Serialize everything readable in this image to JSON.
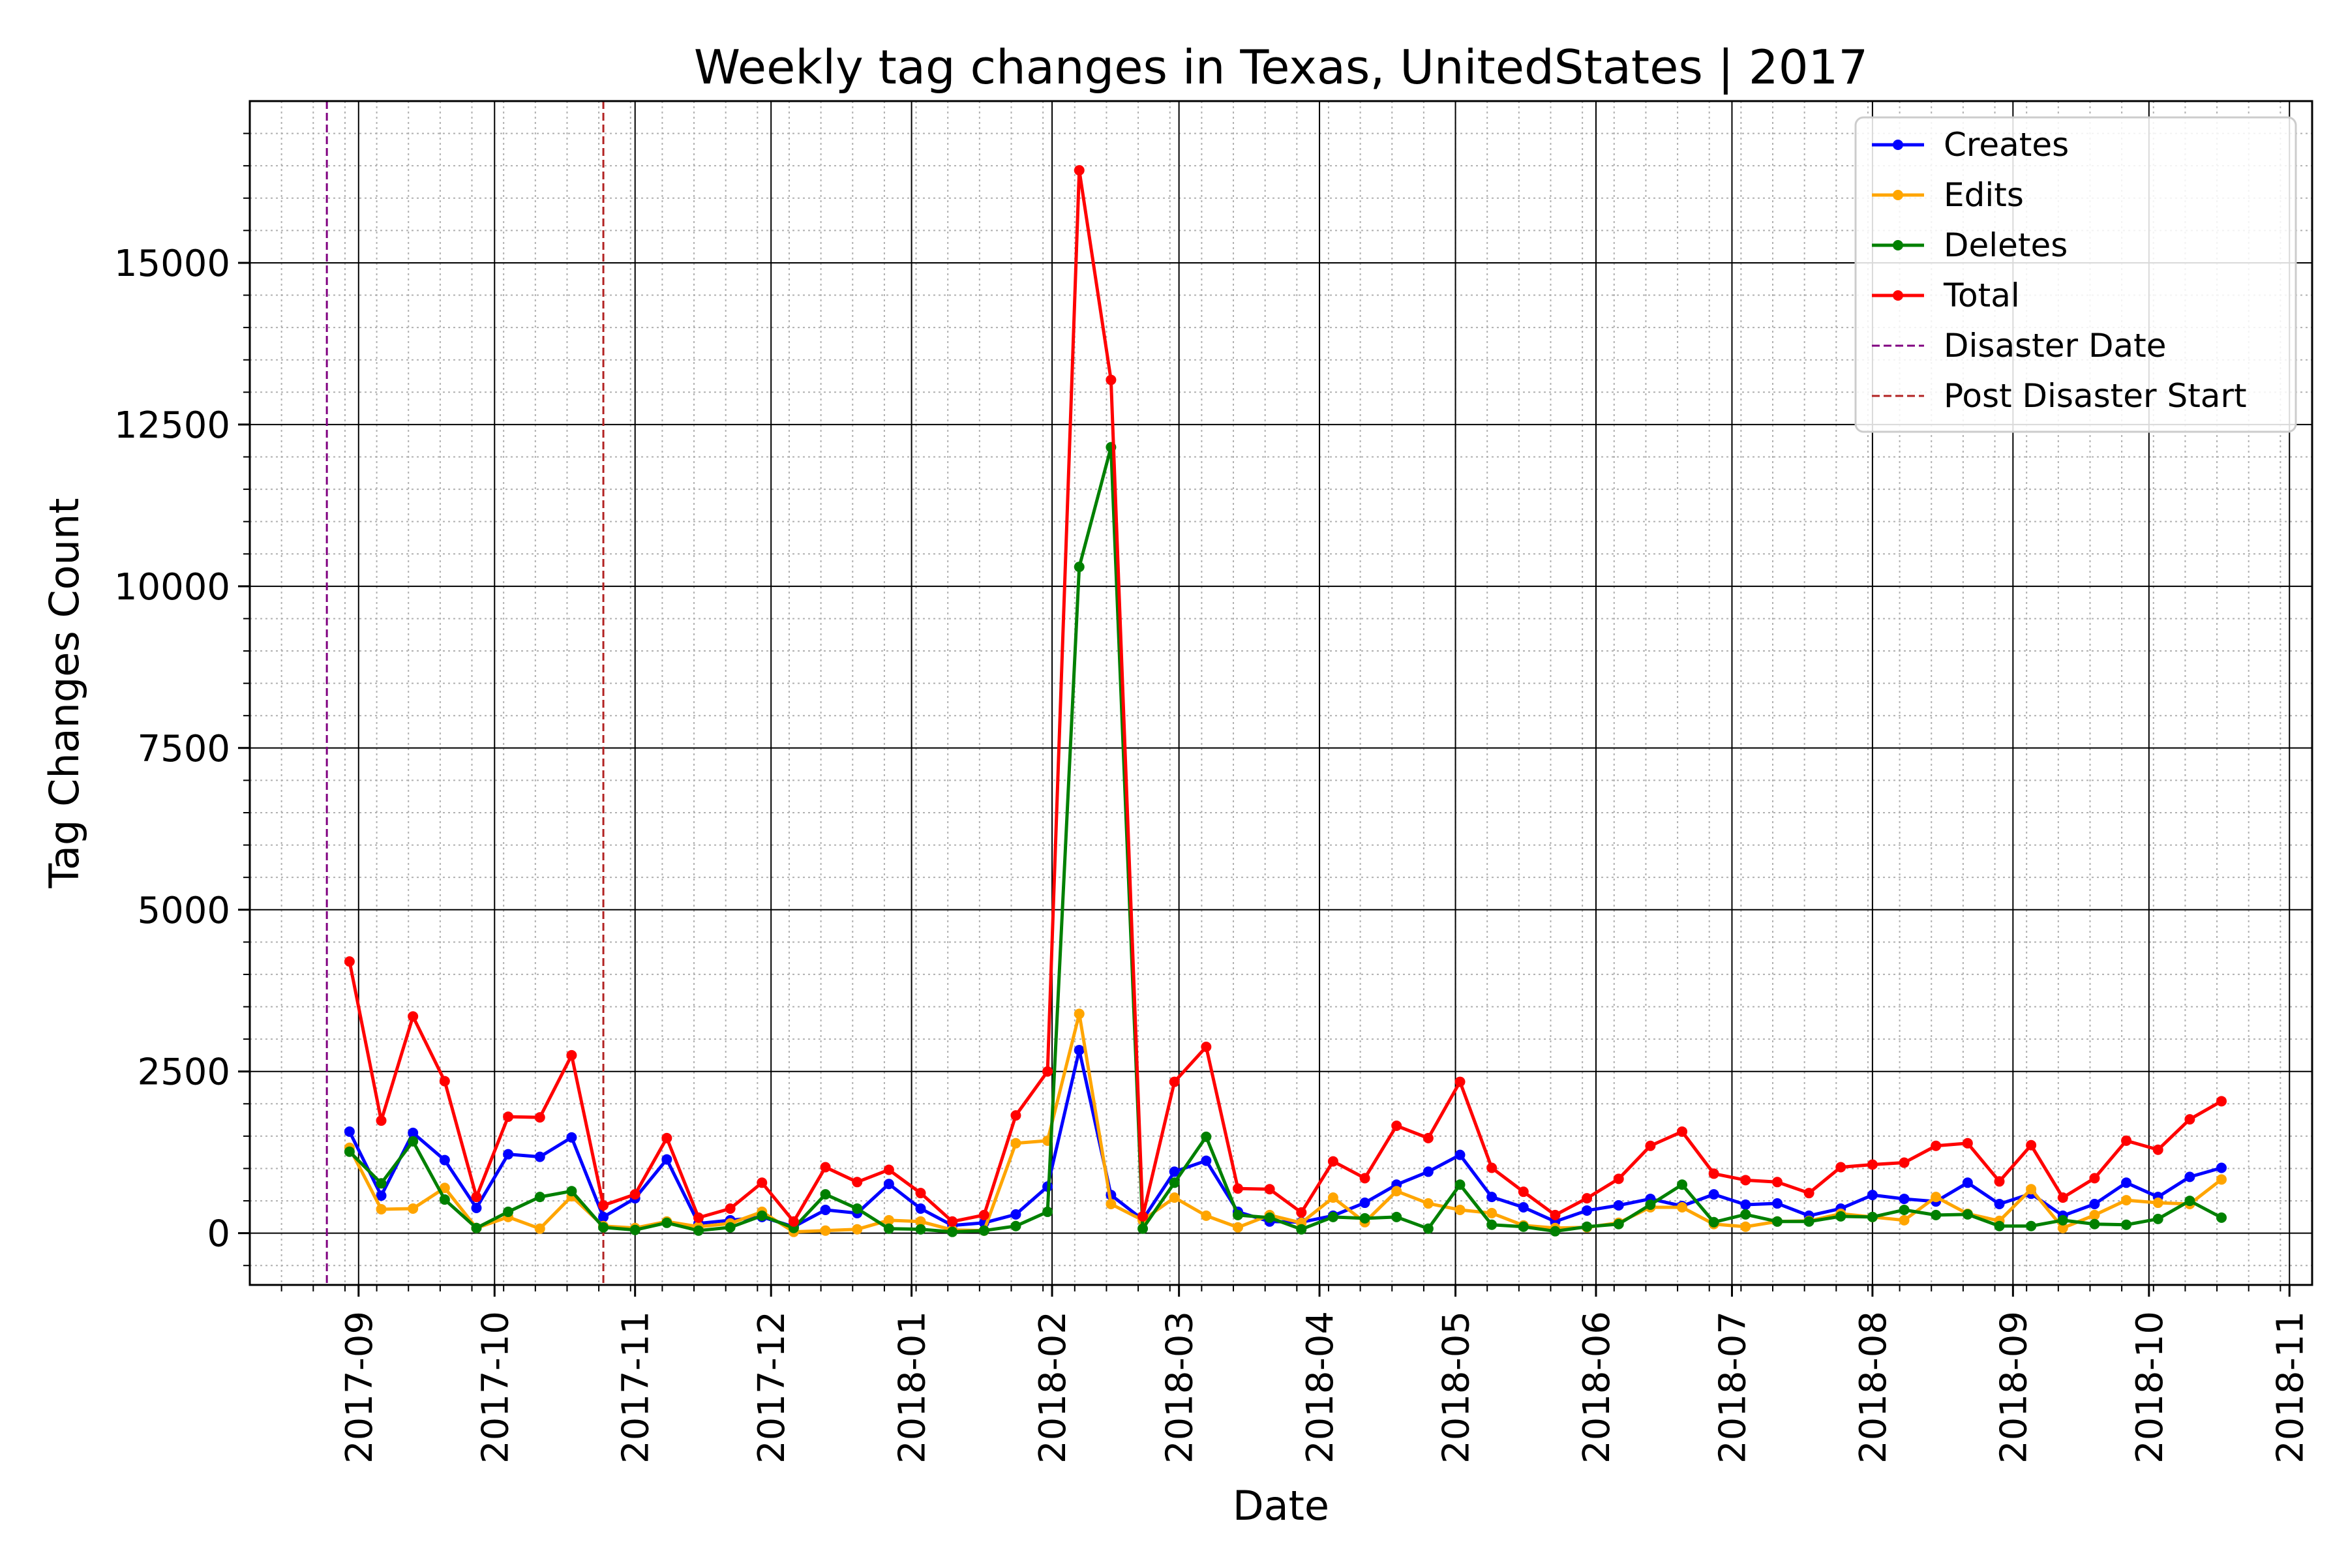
{
  "chart_data": {
    "type": "line",
    "title": "Weekly tag changes in Texas, UnitedStates | 2017",
    "xlabel": "Date",
    "ylabel": "Tag Changes Count",
    "x_type": "date",
    "xlim": [
      "2017-08-08",
      "2018-11-06"
    ],
    "ylim": [
      -800,
      17500
    ],
    "yticks": [
      0,
      2500,
      5000,
      7500,
      10000,
      12500,
      15000
    ],
    "xticks": [
      "2017-09",
      "2017-10",
      "2017-11",
      "2017-12",
      "2018-01",
      "2018-02",
      "2018-03",
      "2018-04",
      "2018-05",
      "2018-06",
      "2018-07",
      "2018-08",
      "2018-09",
      "2018-10",
      "2018-11"
    ],
    "xtick_dates": [
      "2017-09-01",
      "2017-10-01",
      "2017-11-01",
      "2017-12-01",
      "2018-01-01",
      "2018-02-01",
      "2018-03-01",
      "2018-04-01",
      "2018-05-01",
      "2018-06-01",
      "2018-07-01",
      "2018-08-01",
      "2018-09-01",
      "2018-10-01",
      "2018-11-01"
    ],
    "grid": true,
    "minor_grid": true,
    "legend_position": "top-right",
    "x": [
      "2017-08-30",
      "2017-09-06",
      "2017-09-13",
      "2017-09-20",
      "2017-09-27",
      "2017-10-04",
      "2017-10-11",
      "2017-10-18",
      "2017-10-25",
      "2017-11-01",
      "2017-11-08",
      "2017-11-15",
      "2017-11-22",
      "2017-11-29",
      "2017-12-06",
      "2017-12-13",
      "2017-12-20",
      "2017-12-27",
      "2018-01-03",
      "2018-01-10",
      "2018-01-17",
      "2018-01-24",
      "2018-01-31",
      "2018-02-07",
      "2018-02-14",
      "2018-02-21",
      "2018-02-28",
      "2018-03-07",
      "2018-03-14",
      "2018-03-21",
      "2018-03-28",
      "2018-04-04",
      "2018-04-11",
      "2018-04-18",
      "2018-04-25",
      "2018-05-02",
      "2018-05-09",
      "2018-05-16",
      "2018-05-23",
      "2018-05-30",
      "2018-06-06",
      "2018-06-13",
      "2018-06-20",
      "2018-06-27",
      "2018-07-04",
      "2018-07-11",
      "2018-07-18",
      "2018-07-25",
      "2018-08-01",
      "2018-08-08",
      "2018-08-15",
      "2018-08-22",
      "2018-08-29",
      "2018-09-05",
      "2018-09-12",
      "2018-09-19",
      "2018-09-26",
      "2018-10-03",
      "2018-10-10",
      "2018-10-17"
    ],
    "series": [
      {
        "name": "Creates",
        "color": "#0000ff",
        "values": [
          1570,
          580,
          1550,
          1130,
          390,
          1220,
          1180,
          1480,
          250,
          540,
          1140,
          150,
          200,
          250,
          100,
          360,
          310,
          760,
          380,
          120,
          160,
          290,
          720,
          2830,
          590,
          210,
          950,
          1120,
          330,
          180,
          170,
          270,
          470,
          750,
          950,
          1210,
          560,
          400,
          180,
          350,
          430,
          530,
          420,
          600,
          440,
          460,
          270,
          380,
          590,
          530,
          490,
          780,
          450,
          610,
          270,
          450,
          780,
          560,
          870,
          1010
        ]
      },
      {
        "name": "Edits",
        "color": "#ffa500",
        "values": [
          1320,
          370,
          380,
          700,
          80,
          250,
          70,
          570,
          110,
          80,
          180,
          100,
          150,
          330,
          20,
          40,
          60,
          200,
          180,
          50,
          40,
          1390,
          1430,
          3390,
          450,
          200,
          550,
          270,
          90,
          280,
          160,
          550,
          170,
          650,
          460,
          360,
          310,
          120,
          80,
          90,
          160,
          400,
          400,
          140,
          100,
          180,
          190,
          300,
          250,
          200,
          560,
          300,
          190,
          680,
          80,
          280,
          510,
          470,
          450,
          830
        ]
      },
      {
        "name": "Deletes",
        "color": "#008000",
        "values": [
          1260,
          770,
          1420,
          520,
          80,
          330,
          560,
          650,
          90,
          50,
          160,
          40,
          90,
          270,
          80,
          600,
          380,
          70,
          60,
          20,
          40,
          110,
          330,
          10300,
          12150,
          70,
          780,
          1490,
          280,
          240,
          60,
          250,
          230,
          250,
          70,
          750,
          130,
          100,
          30,
          100,
          140,
          440,
          750,
          170,
          290,
          180,
          180,
          260,
          250,
          360,
          280,
          290,
          110,
          110,
          200,
          140,
          130,
          220,
          500,
          240
        ]
      },
      {
        "name": "Total",
        "color": "#ff0000",
        "values": [
          4200,
          1740,
          3350,
          2350,
          560,
          1800,
          1790,
          2750,
          430,
          600,
          1470,
          240,
          380,
          780,
          180,
          1020,
          790,
          980,
          620,
          180,
          280,
          1820,
          2500,
          16430,
          13190,
          260,
          2340,
          2880,
          690,
          680,
          320,
          1110,
          850,
          1660,
          1470,
          2340,
          1010,
          640,
          280,
          540,
          840,
          1350,
          1570,
          920,
          820,
          790,
          620,
          1020,
          1060,
          1090,
          1350,
          1390,
          800,
          1360,
          550,
          850,
          1430,
          1290,
          1760,
          2040
        ]
      }
    ],
    "vlines": [
      {
        "name": "Disaster Date",
        "x": "2017-08-25",
        "color": "#800080"
      },
      {
        "name": "Post Disaster Start",
        "x": "2017-10-25",
        "color": "#b22222"
      }
    ]
  }
}
